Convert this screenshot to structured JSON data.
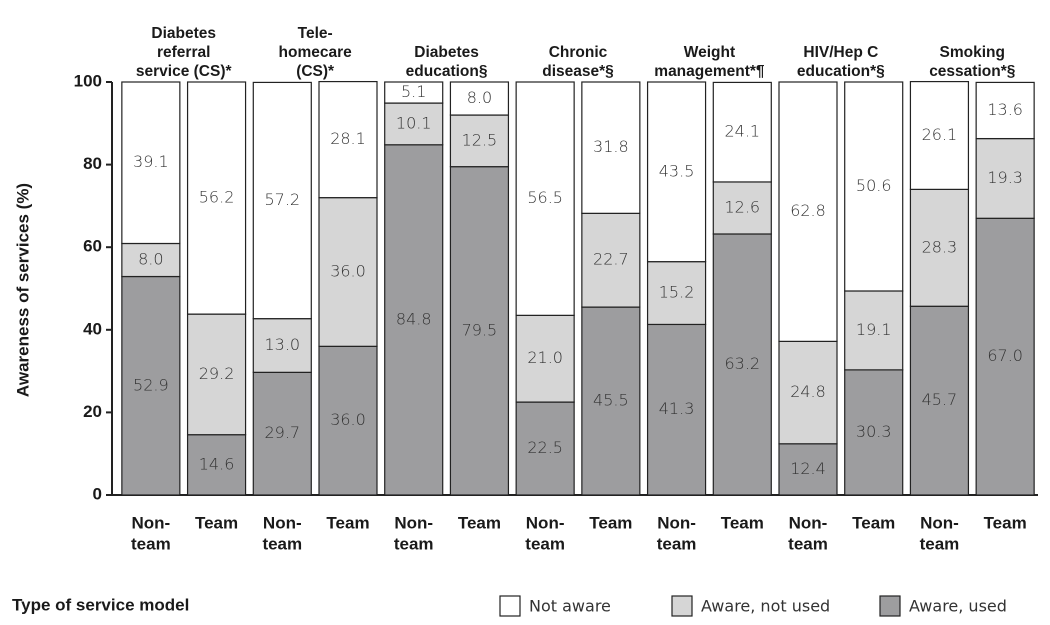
{
  "chart_data": {
    "type": "stacked_bar",
    "groups": [
      [
        "Diabetes",
        "referral",
        "service (CS)*"
      ],
      [
        "Tele-",
        "homecare",
        "(CS)*"
      ],
      [
        "Diabetes",
        "education§"
      ],
      [
        "Chronic",
        "disease*§"
      ],
      [
        "Weight",
        "management*¶"
      ],
      [
        "HIV/Hep C",
        "education*§"
      ],
      [
        "Smoking",
        "cessation*§"
      ]
    ],
    "categories": [
      [
        "Non-",
        "team"
      ],
      [
        "Team"
      ],
      [
        "Non-",
        "team"
      ],
      [
        "Team"
      ],
      [
        "Non-",
        "team"
      ],
      [
        "Team"
      ],
      [
        "Non-",
        "team"
      ],
      [
        "Team"
      ],
      [
        "Non-",
        "team"
      ],
      [
        "Team"
      ],
      [
        "Non-",
        "team"
      ],
      [
        "Team"
      ],
      [
        "Non-",
        "team"
      ],
      [
        "Team"
      ]
    ],
    "series": [
      {
        "name": "Not aware",
        "color": "#ffffff",
        "values": [
          39.1,
          56.2,
          57.2,
          28.1,
          5.1,
          8.0,
          56.5,
          31.8,
          43.5,
          24.1,
          62.8,
          50.6,
          26.1,
          13.6
        ],
        "value_labels": [
          "39.1",
          "56.2",
          "57.2",
          "28.1",
          "5.1",
          "8.0",
          "56.5",
          "31.8",
          "43.5",
          "24.1",
          "62.8",
          "50.6",
          "26.1",
          "13.6"
        ]
      },
      {
        "name": "Aware, not used",
        "color": "#d6d6d6",
        "values": [
          8.0,
          29.2,
          13.0,
          36.0,
          10.1,
          12.5,
          21.0,
          22.7,
          15.2,
          12.6,
          24.8,
          19.1,
          28.3,
          19.3
        ],
        "value_labels": [
          "8.0",
          "29.2",
          "13.0",
          "36.0",
          "10.1",
          "12.5",
          "21.0",
          "22.7",
          "15.2",
          "12.6",
          "24.8",
          "19.1",
          "28.3",
          "19.3"
        ]
      },
      {
        "name": "Aware, used",
        "color": "#9d9d9f",
        "values": [
          52.9,
          14.6,
          29.7,
          36.0,
          84.8,
          79.5,
          22.5,
          45.5,
          41.3,
          63.2,
          12.4,
          30.3,
          45.7,
          67.0
        ],
        "value_labels": [
          "52.9",
          "14.6",
          "29.7",
          "36.0",
          "84.8",
          "79.5",
          "22.5",
          "45.5",
          "41.3",
          "63.2",
          "12.4",
          "30.3",
          "45.7",
          "67.0"
        ]
      }
    ],
    "ylabel": "Awareness of services (%)",
    "xlabel": "Type of service model",
    "ylim": [
      0,
      100
    ],
    "yticks": [
      0,
      20,
      40,
      60,
      80,
      100
    ]
  }
}
